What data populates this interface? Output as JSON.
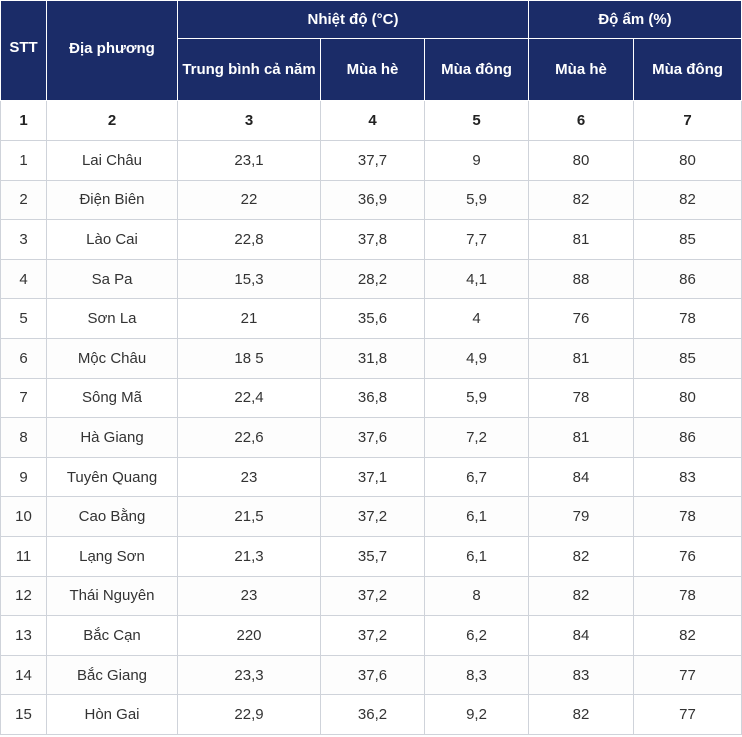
{
  "header": {
    "stt": "STT",
    "place": "Địa phương",
    "temperature_group": "Nhiệt độ (°C)",
    "humidity_group": "Độ ẩm (%)",
    "temp_annual_avg": "Trung bình cả năm",
    "temp_summer": "Mùa hè",
    "temp_winter": "Mùa đông",
    "hum_summer": "Mùa hè",
    "hum_winter": "Mùa đông"
  },
  "column_numbers": [
    "1",
    "2",
    "3",
    "4",
    "5",
    "6",
    "7"
  ],
  "rows": [
    {
      "stt": "1",
      "place": "Lai Châu",
      "avg": "23,1",
      "t_summer": "37,7",
      "t_winter": "9",
      "h_summer": "80",
      "h_winter": "80"
    },
    {
      "stt": "2",
      "place": "Điện Biên",
      "avg": "22",
      "t_summer": "36,9",
      "t_winter": "5,9",
      "h_summer": "82",
      "h_winter": "82"
    },
    {
      "stt": "3",
      "place": "Lào Cai",
      "avg": "22,8",
      "t_summer": "37,8",
      "t_winter": "7,7",
      "h_summer": "81",
      "h_winter": "85"
    },
    {
      "stt": "4",
      "place": "Sa Pa",
      "avg": "15,3",
      "t_summer": "28,2",
      "t_winter": "4,1",
      "h_summer": "88",
      "h_winter": "86"
    },
    {
      "stt": "5",
      "place": "Sơn La",
      "avg": "21",
      "t_summer": "35,6",
      "t_winter": "4",
      "h_summer": "76",
      "h_winter": "78"
    },
    {
      "stt": "6",
      "place": "Mộc Châu",
      "avg": "18 5",
      "t_summer": "31,8",
      "t_winter": "4,9",
      "h_summer": "81",
      "h_winter": "85"
    },
    {
      "stt": "7",
      "place": "Sông Mã",
      "avg": "22,4",
      "t_summer": "36,8",
      "t_winter": "5,9",
      "h_summer": "78",
      "h_winter": "80"
    },
    {
      "stt": "8",
      "place": "Hà Giang",
      "avg": "22,6",
      "t_summer": "37,6",
      "t_winter": "7,2",
      "h_summer": "81",
      "h_winter": "86"
    },
    {
      "stt": "9",
      "place": "Tuyên Quang",
      "avg": "23",
      "t_summer": "37,1",
      "t_winter": "6,7",
      "h_summer": "84",
      "h_winter": "83"
    },
    {
      "stt": "10",
      "place": "Cao Bằng",
      "avg": "21,5",
      "t_summer": "37,2",
      "t_winter": "6,1",
      "h_summer": "79",
      "h_winter": "78"
    },
    {
      "stt": "11",
      "place": "Lạng Sơn",
      "avg": "21,3",
      "t_summer": "35,7",
      "t_winter": "6,1",
      "h_summer": "82",
      "h_winter": "76"
    },
    {
      "stt": "12",
      "place": "Thái Nguyên",
      "avg": "23",
      "t_summer": "37,2",
      "t_winter": "8",
      "h_summer": "82",
      "h_winter": "78"
    },
    {
      "stt": "13",
      "place": "Bắc Cạn",
      "avg": "220",
      "t_summer": "37,2",
      "t_winter": "6,2",
      "h_summer": "84",
      "h_winter": "82"
    },
    {
      "stt": "14",
      "place": "Bắc Giang",
      "avg": "23,3",
      "t_summer": "37,6",
      "t_winter": "8,3",
      "h_summer": "83",
      "h_winter": "77"
    },
    {
      "stt": "15",
      "place": "Hòn Gai",
      "avg": "22,9",
      "t_summer": "36,2",
      "t_winter": "9,2",
      "h_summer": "82",
      "h_winter": "77"
    }
  ]
}
